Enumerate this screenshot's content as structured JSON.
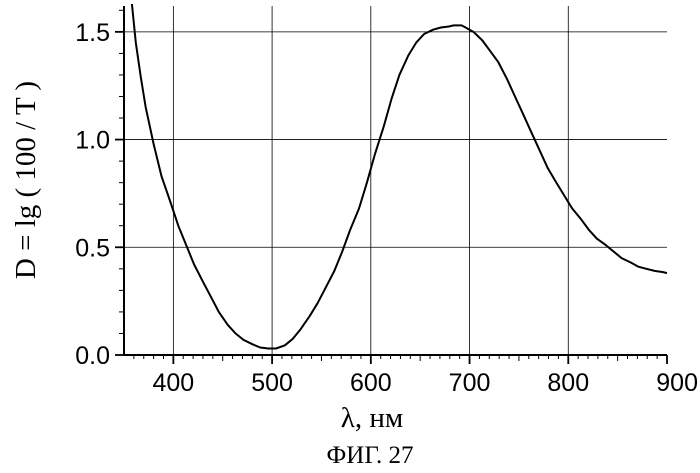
{
  "chart_data": {
    "type": "line",
    "title": "",
    "xlabel": "λ, нм",
    "ylabel": "D = lg ( 100 / T )",
    "caption": "ФИГ. 27",
    "xlim": [
      350,
      900
    ],
    "ylim": [
      0.0,
      1.62
    ],
    "xticks": [
      400,
      500,
      600,
      700,
      800,
      900
    ],
    "xtick_labels": [
      "400",
      "500",
      "600",
      "700",
      "800",
      "900"
    ],
    "yticks": [
      0.0,
      0.5,
      1.0,
      1.5
    ],
    "ytick_labels": [
      "0.0",
      "0.5",
      "1.0",
      "1.5"
    ],
    "grid": true,
    "legend": "none",
    "series": [
      {
        "color": "#000000",
        "x": [
          358,
          362,
          367,
          372,
          380,
          388,
          397,
          405,
          413,
          421,
          430,
          438,
          446,
          455,
          463,
          471,
          480,
          488,
          496,
          504,
          513,
          521,
          529,
          538,
          546,
          554,
          563,
          571,
          579,
          588,
          596,
          604,
          613,
          621,
          629,
          638,
          646,
          654,
          663,
          671,
          679,
          684,
          688,
          692,
          696,
          700,
          704,
          713,
          721,
          729,
          738,
          746,
          754,
          763,
          771,
          779,
          788,
          796,
          804,
          813,
          821,
          829,
          838,
          846,
          854,
          863,
          871,
          879,
          888,
          896,
          900
        ],
        "y": [
          1.63,
          1.45,
          1.29,
          1.15,
          0.98,
          0.83,
          0.71,
          0.6,
          0.51,
          0.42,
          0.34,
          0.27,
          0.2,
          0.14,
          0.1,
          0.07,
          0.05,
          0.035,
          0.03,
          0.03,
          0.045,
          0.075,
          0.12,
          0.18,
          0.24,
          0.31,
          0.39,
          0.48,
          0.58,
          0.68,
          0.8,
          0.93,
          1.06,
          1.19,
          1.3,
          1.39,
          1.45,
          1.49,
          1.51,
          1.52,
          1.525,
          1.53,
          1.53,
          1.53,
          1.52,
          1.51,
          1.5,
          1.46,
          1.41,
          1.36,
          1.28,
          1.2,
          1.12,
          1.03,
          0.95,
          0.87,
          0.8,
          0.74,
          0.68,
          0.63,
          0.58,
          0.54,
          0.51,
          0.48,
          0.45,
          0.43,
          0.41,
          0.4,
          0.39,
          0.385,
          0.38
        ]
      }
    ]
  }
}
